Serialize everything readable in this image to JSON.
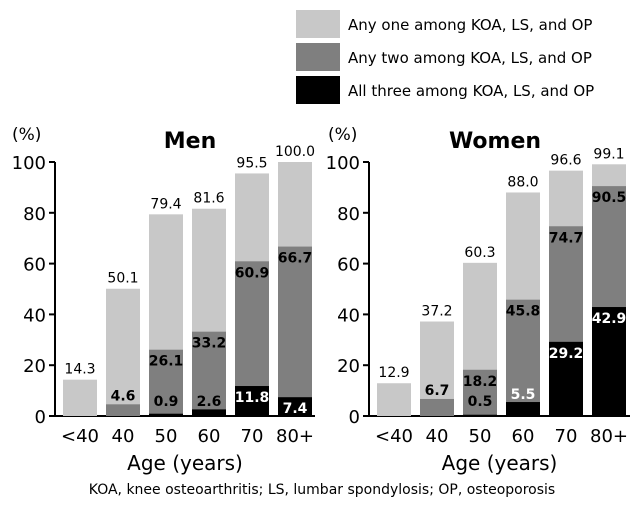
{
  "legend": {
    "items": [
      {
        "label": "Any one among KOA, LS, and OP",
        "color": "#c8c8c8"
      },
      {
        "label": "Any two among KOA, LS, and OP",
        "color": "#7f7f7f"
      },
      {
        "label": "All three among KOA, LS, and OP",
        "color": "#000000"
      }
    ]
  },
  "footnote": "KOA, knee osteoarthritis; LS, lumbar spondylosis; OP, osteoporosis",
  "chart_data": [
    {
      "type": "bar",
      "title": "Men",
      "xlabel": "Age (years)",
      "ylabel": "(%)",
      "ylim": [
        0,
        100
      ],
      "yticks": [
        0,
        20,
        40,
        60,
        80,
        100
      ],
      "categories": [
        "<40",
        "40",
        "50",
        "60",
        "70",
        "80+"
      ],
      "series": [
        {
          "name": "Any one among KOA, LS, and OP",
          "values": [
            14.3,
            50.1,
            79.4,
            81.6,
            95.5,
            100.0
          ],
          "labels": [
            "14.3",
            "50.1",
            "79.4",
            "81.6",
            "95.5",
            "100.0"
          ]
        },
        {
          "name": "Any two among KOA, LS, and OP",
          "values": [
            0,
            4.6,
            26.1,
            33.2,
            60.9,
            66.7
          ],
          "labels": [
            "",
            "4.6",
            "26.1",
            "33.2",
            "60.9",
            "66.7"
          ]
        },
        {
          "name": "All three among KOA, LS, and OP",
          "values": [
            0,
            0,
            0.9,
            2.6,
            11.8,
            7.4
          ],
          "labels": [
            "",
            "",
            "0.9",
            "2.6",
            "11.8",
            "7.4"
          ]
        }
      ]
    },
    {
      "type": "bar",
      "title": "Women",
      "xlabel": "Age (years)",
      "ylabel": "(%)",
      "ylim": [
        0,
        100
      ],
      "yticks": [
        0,
        20,
        40,
        60,
        80,
        100
      ],
      "categories": [
        "<40",
        "40",
        "50",
        "60",
        "70",
        "80+"
      ],
      "series": [
        {
          "name": "Any one among KOA, LS, and OP",
          "values": [
            12.9,
            37.2,
            60.3,
            88.0,
            96.6,
            99.1
          ],
          "labels": [
            "12.9",
            "37.2",
            "60.3",
            "88.0",
            "96.6",
            "99.1"
          ]
        },
        {
          "name": "Any two among KOA, LS, and OP",
          "values": [
            0,
            6.7,
            18.2,
            45.8,
            74.7,
            90.5
          ],
          "labels": [
            "",
            "6.7",
            "18.2",
            "45.8",
            "74.7",
            "90.5"
          ]
        },
        {
          "name": "All three among KOA, LS, and OP",
          "values": [
            0,
            0,
            0.5,
            5.5,
            29.2,
            42.9
          ],
          "labels": [
            "",
            "",
            "0.5",
            "5.5",
            "29.2",
            "42.9"
          ]
        }
      ]
    }
  ]
}
